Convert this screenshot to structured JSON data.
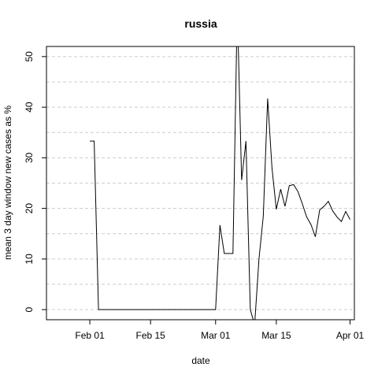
{
  "chart_data": {
    "type": "line",
    "title": "russia",
    "xlabel": "date",
    "ylabel": "mean  3  day window new cases as %",
    "x_is_date": true,
    "xlim": [
      "2020-01-22",
      "2020-04-02"
    ],
    "ylim": [
      -2,
      52
    ],
    "x_ticks": [
      {
        "date": "2020-02-01",
        "label": "Feb 01"
      },
      {
        "date": "2020-02-15",
        "label": "Feb 15"
      },
      {
        "date": "2020-03-01",
        "label": "Mar 01"
      },
      {
        "date": "2020-03-15",
        "label": "Mar 15"
      },
      {
        "date": "2020-04-01",
        "label": "Apr 01"
      }
    ],
    "y_ticks": [
      0,
      10,
      20,
      30,
      40,
      50
    ],
    "grid": "horizontal dashed lines every 5 units",
    "line_color": "#000000",
    "grid_color": "#cccccc",
    "series": [
      {
        "x": [
          "2020-02-01",
          "2020-02-02",
          "2020-02-03",
          "2020-02-04",
          "2020-02-05",
          "2020-02-06",
          "2020-02-07",
          "2020-02-08",
          "2020-02-09",
          "2020-02-10",
          "2020-02-11",
          "2020-02-12",
          "2020-02-13",
          "2020-02-14",
          "2020-02-15",
          "2020-02-16",
          "2020-02-17",
          "2020-02-18",
          "2020-02-19",
          "2020-02-20",
          "2020-02-21",
          "2020-02-22",
          "2020-02-23",
          "2020-02-24",
          "2020-02-25",
          "2020-02-26",
          "2020-02-27",
          "2020-02-28",
          "2020-02-29",
          "2020-03-01",
          "2020-03-02",
          "2020-03-03",
          "2020-03-04",
          "2020-03-05",
          "2020-03-06",
          "2020-03-07",
          "2020-03-08",
          "2020-03-09",
          "2020-03-10",
          "2020-03-11",
          "2020-03-12",
          "2020-03-13",
          "2020-03-14",
          "2020-03-15",
          "2020-03-16",
          "2020-03-17",
          "2020-03-18",
          "2020-03-19",
          "2020-03-20",
          "2020-03-21",
          "2020-03-22",
          "2020-03-23",
          "2020-03-24",
          "2020-03-25",
          "2020-03-26",
          "2020-03-27",
          "2020-03-28",
          "2020-03-29",
          "2020-03-30",
          "2020-03-31",
          "2020-04-01"
        ],
        "values": [
          33.3,
          33.3,
          0,
          0,
          0,
          0,
          0,
          0,
          0,
          0,
          0,
          0,
          0,
          0,
          0,
          0,
          0,
          0,
          0,
          0,
          0,
          0,
          0,
          0,
          0,
          0,
          0,
          0,
          0,
          0,
          16.7,
          11.1,
          11.1,
          11.1,
          60,
          25.6,
          33.3,
          0,
          -3,
          10,
          18.5,
          41.7,
          28,
          19.8,
          23.8,
          20.4,
          24.5,
          24.7,
          23.3,
          20.9,
          18.3,
          16.8,
          14.4,
          19.7,
          20.4,
          21.4,
          19.5,
          18.3,
          17.4,
          19.4,
          17.8
        ]
      }
    ]
  }
}
